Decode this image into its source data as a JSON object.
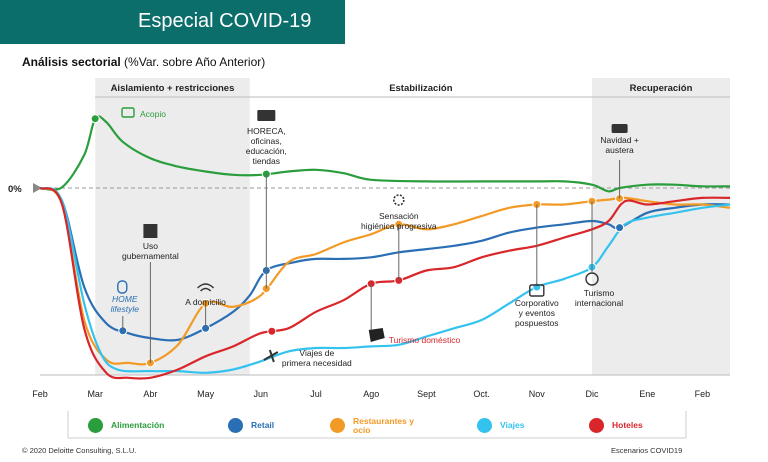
{
  "header": {
    "title": "Especial COVID-19"
  },
  "subtitle": {
    "bold": "Análisis sectorial",
    "rest": " (%Var. sobre Año Anterior)"
  },
  "footer": {
    "copyright": "© 2020 Deloitte Consulting, S.L.U.",
    "right": "Escenarios COVID19"
  },
  "chart_data": {
    "type": "line",
    "x_ticks": [
      "Feb",
      "Mar",
      "Abr",
      "May",
      "Jun",
      "Jul",
      "Ago",
      "Sept",
      "Oct.",
      "Nov",
      "Dic",
      "Ene",
      "Feb"
    ],
    "y_label": "0%",
    "phases": [
      {
        "label": "Aislamiento + restricciones",
        "from": 1.0,
        "to": 3.8,
        "shaded": true
      },
      {
        "label": "Estabilización",
        "from": 3.8,
        "to": 10.0,
        "shaded": false
      },
      {
        "label": "Recuperación",
        "from": 10.0,
        "to": 12.5,
        "shaded": true
      }
    ],
    "colors": {
      "Alimentación": "#2a9d3c",
      "Retail": "#2a6fb5",
      "Restaurantes y ocio": "#f29a26",
      "Viajes": "#33c3ee",
      "Hoteles": "#d9262b"
    },
    "series": [
      {
        "name": "Alimentación",
        "color": "#2a9d3c",
        "points": [
          [
            0,
            0
          ],
          [
            0.4,
            0.5
          ],
          [
            0.8,
            20
          ],
          [
            1.0,
            42
          ],
          [
            1.2,
            40
          ],
          [
            1.5,
            28
          ],
          [
            2.0,
            18
          ],
          [
            2.5,
            13
          ],
          [
            3,
            10
          ],
          [
            3.5,
            8
          ],
          [
            4,
            8
          ],
          [
            4.5,
            10
          ],
          [
            5,
            11
          ],
          [
            5.5,
            9
          ],
          [
            6,
            5
          ],
          [
            7,
            4
          ],
          [
            8,
            4
          ],
          [
            9,
            4
          ],
          [
            9.5,
            4
          ],
          [
            10,
            2
          ],
          [
            10.3,
            -2
          ],
          [
            10.5,
            0
          ],
          [
            11,
            2
          ],
          [
            11.5,
            2
          ],
          [
            12,
            1
          ],
          [
            12.5,
            1
          ]
        ]
      },
      {
        "name": "Retail",
        "color": "#2a6fb5",
        "points": [
          [
            0,
            0
          ],
          [
            0.4,
            -8
          ],
          [
            0.8,
            -60
          ],
          [
            1.2,
            -82
          ],
          [
            1.6,
            -88
          ],
          [
            2.0,
            -91
          ],
          [
            2.5,
            -92
          ],
          [
            3.0,
            -85
          ],
          [
            3.5,
            -75
          ],
          [
            3.8,
            -65
          ],
          [
            4.1,
            -50
          ],
          [
            4.6,
            -45
          ],
          [
            5.0,
            -43
          ],
          [
            5.5,
            -43
          ],
          [
            6,
            -42
          ],
          [
            6.5,
            -39
          ],
          [
            7,
            -37
          ],
          [
            7.5,
            -35
          ],
          [
            8,
            -32
          ],
          [
            8.5,
            -27
          ],
          [
            9,
            -24
          ],
          [
            9.5,
            -22
          ],
          [
            10,
            -20
          ],
          [
            10.3,
            -22
          ],
          [
            10.5,
            -24
          ],
          [
            11,
            -15
          ],
          [
            11.5,
            -12
          ],
          [
            12,
            -10
          ],
          [
            12.5,
            -10
          ]
        ]
      },
      {
        "name": "Restaurantes y ocio",
        "color": "#f29a26",
        "points": [
          [
            0,
            0
          ],
          [
            0.4,
            -10
          ],
          [
            0.8,
            -80
          ],
          [
            1.2,
            -104
          ],
          [
            1.6,
            -106
          ],
          [
            2.0,
            -106
          ],
          [
            2.5,
            -95
          ],
          [
            3.0,
            -70
          ],
          [
            3.5,
            -72
          ],
          [
            4.0,
            -65
          ],
          [
            4.5,
            -45
          ],
          [
            5.0,
            -40
          ],
          [
            5.5,
            -33
          ],
          [
            6,
            -28
          ],
          [
            6.5,
            -22
          ],
          [
            7,
            -25
          ],
          [
            7.5,
            -22
          ],
          [
            8,
            -17
          ],
          [
            8.5,
            -12
          ],
          [
            9,
            -10
          ],
          [
            9.5,
            -10
          ],
          [
            10,
            -8
          ],
          [
            10.3,
            -7
          ],
          [
            10.6,
            -6
          ],
          [
            11,
            -8
          ],
          [
            11.5,
            -10
          ],
          [
            12,
            -10
          ],
          [
            12.5,
            -12
          ]
        ]
      },
      {
        "name": "Viajes",
        "color": "#33c3ee",
        "points": [
          [
            0,
            0
          ],
          [
            0.4,
            -8
          ],
          [
            0.8,
            -70
          ],
          [
            1.1,
            -100
          ],
          [
            1.4,
            -110
          ],
          [
            2,
            -111
          ],
          [
            2.5,
            -111
          ],
          [
            3.0,
            -112
          ],
          [
            3.5,
            -110
          ],
          [
            4.0,
            -105
          ],
          [
            4.5,
            -99
          ],
          [
            5,
            -97
          ],
          [
            5.5,
            -97
          ],
          [
            6,
            -96
          ],
          [
            6.5,
            -95
          ],
          [
            7,
            -90
          ],
          [
            7.5,
            -85
          ],
          [
            8,
            -80
          ],
          [
            8.5,
            -70
          ],
          [
            9,
            -60
          ],
          [
            9.5,
            -55
          ],
          [
            10,
            -48
          ],
          [
            10.3,
            -35
          ],
          [
            10.6,
            -22
          ],
          [
            11,
            -18
          ],
          [
            11.5,
            -15
          ],
          [
            12,
            -12
          ],
          [
            12.5,
            -10
          ]
        ]
      },
      {
        "name": "Hoteles",
        "color": "#d9262b",
        "points": [
          [
            0,
            0
          ],
          [
            0.4,
            -10
          ],
          [
            0.8,
            -85
          ],
          [
            1.2,
            -112
          ],
          [
            1.6,
            -115
          ],
          [
            2,
            -115
          ],
          [
            2.5,
            -110
          ],
          [
            3.0,
            -102
          ],
          [
            3.5,
            -96
          ],
          [
            4.0,
            -88
          ],
          [
            4.5,
            -85
          ],
          [
            5,
            -75
          ],
          [
            5.5,
            -68
          ],
          [
            6,
            -58
          ],
          [
            6.5,
            -56
          ],
          [
            7,
            -50
          ],
          [
            7.5,
            -48
          ],
          [
            8,
            -42
          ],
          [
            8.5,
            -38
          ],
          [
            9,
            -35
          ],
          [
            9.5,
            -30
          ],
          [
            10,
            -25
          ],
          [
            10.3,
            -20
          ],
          [
            10.6,
            -8
          ],
          [
            11,
            -10
          ],
          [
            11.5,
            -8
          ],
          [
            12,
            -6
          ],
          [
            12.5,
            -6
          ]
        ]
      }
    ],
    "annotations": [
      {
        "text": "Acopio",
        "color": "#2a9d3c",
        "series": "Alimentación",
        "x": 1.0
      },
      {
        "text": "HORECA, oficinas, educación, tiendas",
        "x": 4.1
      },
      {
        "text": "Sensación higiénica progresiva",
        "x": 6.5
      },
      {
        "text": "Navidad + austera",
        "x": 10.5
      },
      {
        "text": "Uso gubernamental",
        "x": 2.0
      },
      {
        "text": "A domicilio",
        "x": 3.0
      },
      {
        "text": "HOME lifestyle",
        "color": "#2a6fb5",
        "x": 1.5
      },
      {
        "text": "Viajes de primera necesidad",
        "x": 4.2
      },
      {
        "text": "Turismo doméstico",
        "color": "#d9262b",
        "x": 6.1
      },
      {
        "text": "Corporativo y eventos pospuestos",
        "x": 9.0
      },
      {
        "text": "Turismo internacional",
        "x": 10.0
      }
    ],
    "legend": [
      "Alimentación",
      "Retail",
      "Restaurantes y ocio",
      "Viajes",
      "Hoteles"
    ]
  }
}
